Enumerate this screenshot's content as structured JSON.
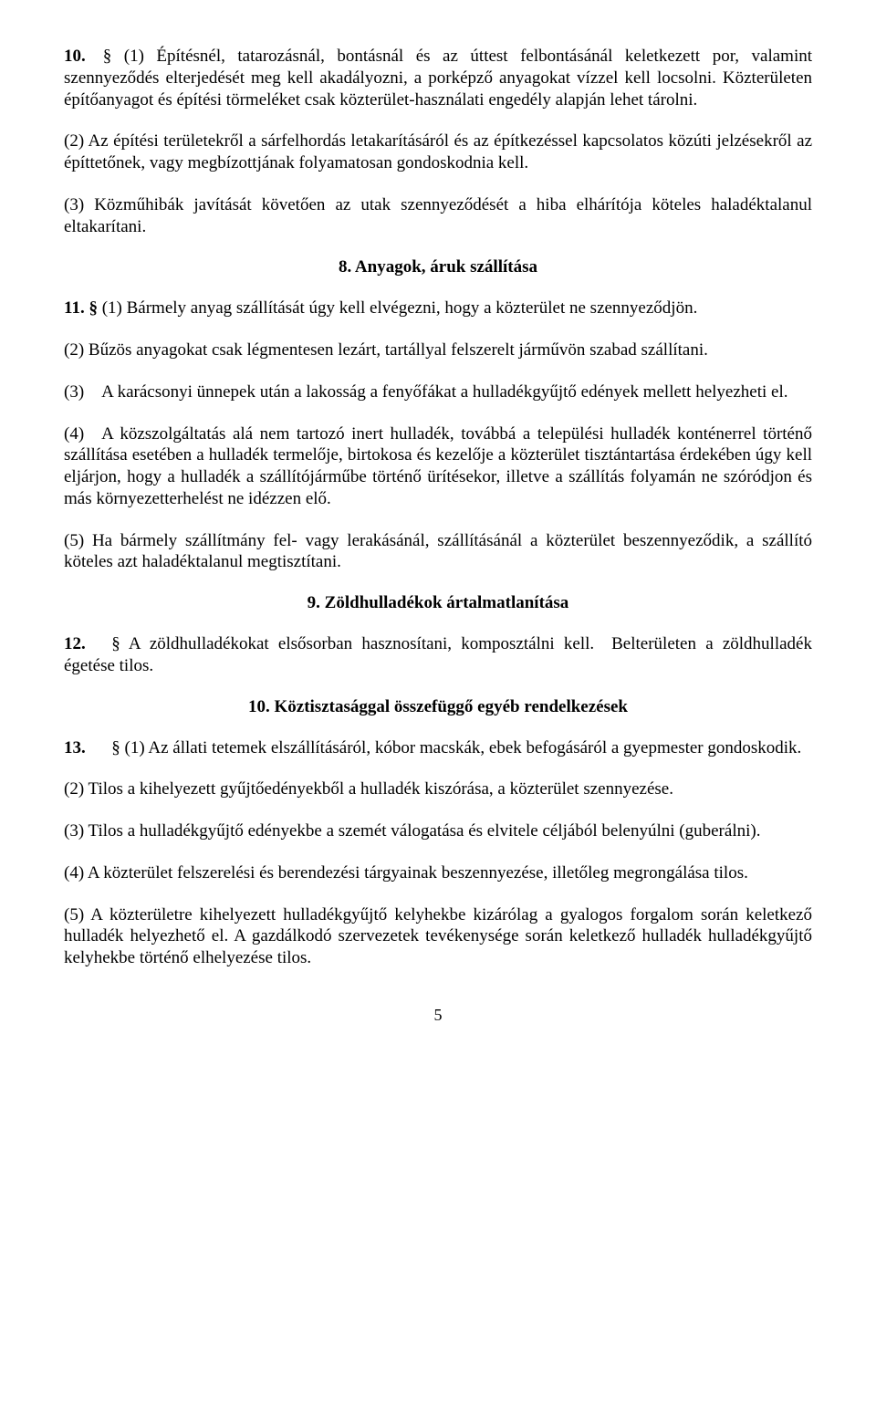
{
  "p10_1": "10.  § (1) Építésnél, tatarozásnál, bontásnál és az úttest felbontásánál keletkezett por, valamint szennyeződés elterjedését meg kell akadályozni, a porképző anyagokat vízzel kell locsolni. Közterületen építőanyagot és építési törmeléket csak közterület-használati engedély alapján lehet tárolni.",
  "p10_2": "(2) Az építési területekről a sárfelhordás letakarításáról és az építkezéssel kapcsolatos közúti jelzésekről az építtetőnek, vagy megbízottjának folyamatosan gondoskodnia kell.",
  "p10_3": "(3) Közműhibák javítását követően az utak szennyeződését a hiba elhárítója köteles haladéktalanul eltakarítani.",
  "h8": "8. Anyagok, áruk szállítása",
  "p11_1_pre": "11. §",
  "p11_1": " (1) Bármely anyag szállítását úgy kell elvégezni, hogy a közterület ne szennyeződjön.",
  "p11_2": "(2) Bűzös anyagokat csak légmentesen lezárt, tartállyal felszerelt járművön szabad szállítani.",
  "p11_3": "(3)  A karácsonyi ünnepek után a lakosság a fenyőfákat a hulladékgyűjtő edények mellett helyezheti el.",
  "p11_4": "(4)  A közszolgáltatás alá nem tartozó inert hulladék, továbbá a települési hulladék konténerrel történő szállítása esetében a hulladék termelője, birtokosa és kezelője a közterület tisztántartása érdekében úgy kell eljárjon, hogy a hulladék a szállítójárműbe történő ürítésekor, illetve a szállítás folyamán ne szóródjon és más környezetterhelést ne idézzen elő.",
  "p11_5": "(5) Ha bármely szállítmány fel- vagy lerakásánál, szállításánál a közterület beszennyeződik, a szállító köteles azt haladéktalanul megtisztítani.",
  "h9": "9. Zöldhulladékok ártalmatlanítása",
  "p12_pre": "12.",
  "p12": "   § A zöldhulladékokat elsősorban hasznosítani, komposztálni kell.  Belterületen a zöldhulladék égetése tilos.",
  "h10": "10. Köztisztasággal összefüggő egyéb rendelkezések",
  "p13_1_pre": "13.",
  "p13_1": "   § (1) Az állati tetemek elszállításáról, kóbor macskák, ebek befogásáról a gyepmester gondoskodik.",
  "p13_2": "(2) Tilos a kihelyezett gyűjtőedényekből a hulladék kiszórása, a közterület szennyezése.",
  "p13_3": "(3) Tilos a hulladékgyűjtő edényekbe a szemét válogatása és elvitele céljából belenyúlni (guberálni).",
  "p13_4": "(4) A közterület felszerelési és berendezési tárgyainak beszennyezése, illetőleg megrongálása tilos.",
  "p13_5": "(5) A közterületre kihelyezett hulladékgyűjtő kelyhekbe kizárólag a gyalogos forgalom során keletkező hulladék helyezhető el. A gazdálkodó szervezetek tevékenysége során keletkező hulladék hulladékgyűjtő kelyhekbe történő elhelyezése tilos.",
  "page_number": "5"
}
